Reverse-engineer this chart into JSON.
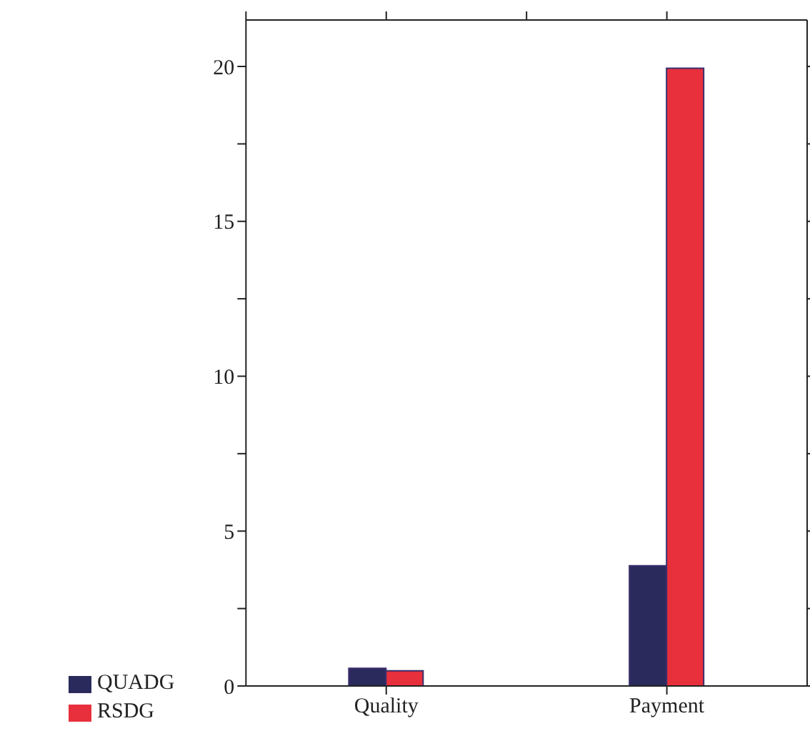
{
  "chart_data": {
    "type": "bar",
    "categories": [
      "Quality",
      "Payment"
    ],
    "series": [
      {
        "name": "QUADG",
        "color": "#2b2a5c",
        "values": [
          0.57,
          3.88
        ]
      },
      {
        "name": "RSDG",
        "color": "#e8303c",
        "values": [
          0.49,
          19.94
        ]
      }
    ],
    "ylim": [
      0,
      21.5
    ],
    "yticks": [
      0,
      {
        "value": 2.5,
        "label": null
      },
      5,
      {
        "value": 7.5,
        "label": null
      },
      10,
      {
        "value": 12.5,
        "label": null
      },
      15,
      {
        "value": 17.5,
        "label": null
      },
      20
    ],
    "grid": false,
    "legend": "bottom left"
  }
}
